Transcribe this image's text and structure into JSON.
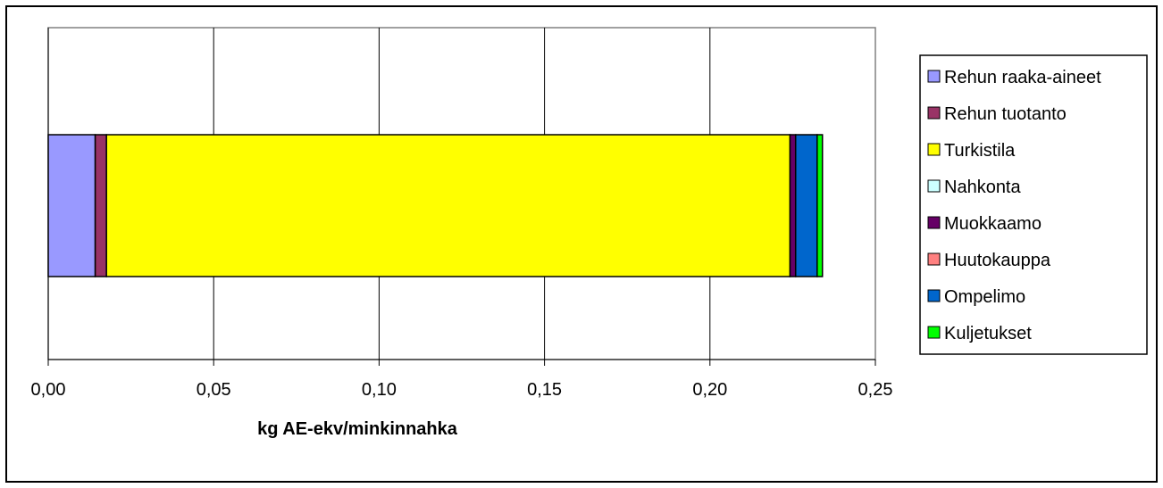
{
  "chart_data": {
    "type": "bar",
    "orientation": "horizontal",
    "stacked": true,
    "title": "",
    "xlabel": "kg AE-ekv/minkinnahka",
    "ylabel": "",
    "xlim": [
      0,
      0.25
    ],
    "x_ticks": [
      0,
      0.05,
      0.1,
      0.15,
      0.2,
      0.25
    ],
    "x_tick_labels": [
      "0,00",
      "0,05",
      "0,10",
      "0,15",
      "0,20",
      "0,25"
    ],
    "grid": true,
    "legend_position": "right",
    "categories": [
      ""
    ],
    "series": [
      {
        "name": "Rehun raaka-aineet",
        "values": [
          0.0142
        ],
        "color": "#9999ff"
      },
      {
        "name": "Rehun tuotanto",
        "values": [
          0.0034
        ],
        "color": "#993366"
      },
      {
        "name": "Turkistila",
        "values": [
          0.2066
        ],
        "color": "#ffff00"
      },
      {
        "name": "Nahkonta",
        "values": [
          0.0
        ],
        "color": "#ccffff"
      },
      {
        "name": "Muokkaamo",
        "values": [
          0.0017
        ],
        "color": "#660066"
      },
      {
        "name": "Huutokauppa",
        "values": [
          0.0
        ],
        "color": "#ff8080"
      },
      {
        "name": "Ompelimo",
        "values": [
          0.0065
        ],
        "color": "#0066cc"
      },
      {
        "name": "Kuljetukset",
        "values": [
          0.0016
        ],
        "color": "#00ff00"
      }
    ]
  }
}
